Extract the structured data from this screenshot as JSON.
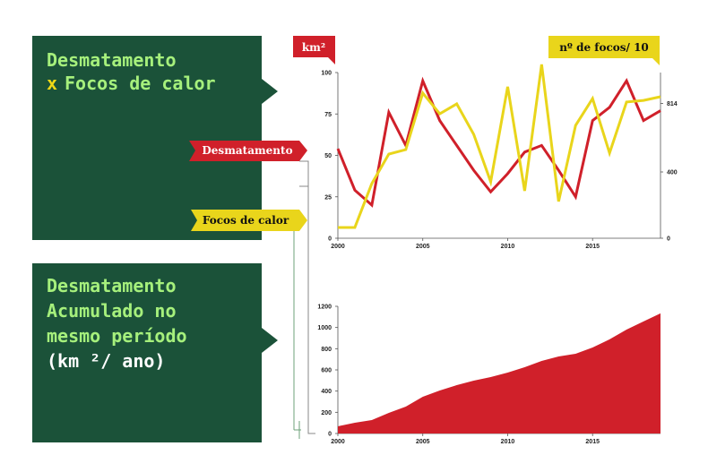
{
  "chart_data": [
    {
      "type": "line",
      "title_parts": [
        "Desmatamento",
        "x",
        "Focos de calor"
      ],
      "y_label": "km²",
      "y2_label": "nº de focos/ 10",
      "x": [
        2000,
        2001,
        2002,
        2003,
        2004,
        2005,
        2006,
        2007,
        2008,
        2009,
        2010,
        2011,
        2012,
        2013,
        2014,
        2015,
        2016,
        2017,
        2018,
        2019
      ],
      "xlim": [
        2000,
        2019
      ],
      "xticks": [
        2000,
        2005,
        2010,
        2015
      ],
      "ylim": [
        0,
        100
      ],
      "yticks": [
        0,
        25,
        50,
        75,
        100
      ],
      "y2lim": [
        0,
        1000
      ],
      "y2ticks": [
        0,
        400,
        814
      ],
      "series": [
        {
          "name": "Desmatamento",
          "color": "#d0202a",
          "values": [
            54,
            29,
            20,
            76,
            56,
            95,
            71,
            56,
            41,
            28,
            39,
            52,
            56,
            41,
            25,
            71,
            79,
            95,
            71,
            77
          ]
        },
        {
          "name": "Focos de calor",
          "color": "#e9d51b",
          "axis": "y2",
          "values": [
            65,
            65,
            330,
            508,
            535,
            876,
            751,
            811,
            627,
            341,
            914,
            286,
            1049,
            222,
            681,
            843,
            514,
            822,
            832,
            854
          ]
        }
      ]
    },
    {
      "type": "area",
      "title_lines": [
        "Desmatamento",
        "Acumulado no",
        "mesmo período"
      ],
      "unit": "(km ²/ ano)",
      "x": [
        2000,
        2001,
        2002,
        2003,
        2004,
        2005,
        2006,
        2007,
        2008,
        2009,
        2010,
        2011,
        2012,
        2013,
        2014,
        2015,
        2016,
        2017,
        2018,
        2019
      ],
      "xlim": [
        2000,
        2019
      ],
      "xticks": [
        2000,
        2005,
        2010,
        2015
      ],
      "ylim": [
        0,
        1200
      ],
      "yticks": [
        0,
        200,
        400,
        600,
        800,
        1000,
        1200
      ],
      "color": "#d0202a",
      "values": [
        68,
        101,
        127,
        194,
        254,
        347,
        406,
        456,
        499,
        532,
        575,
        625,
        685,
        727,
        752,
        811,
        888,
        980,
        1057,
        1133
      ]
    }
  ]
}
